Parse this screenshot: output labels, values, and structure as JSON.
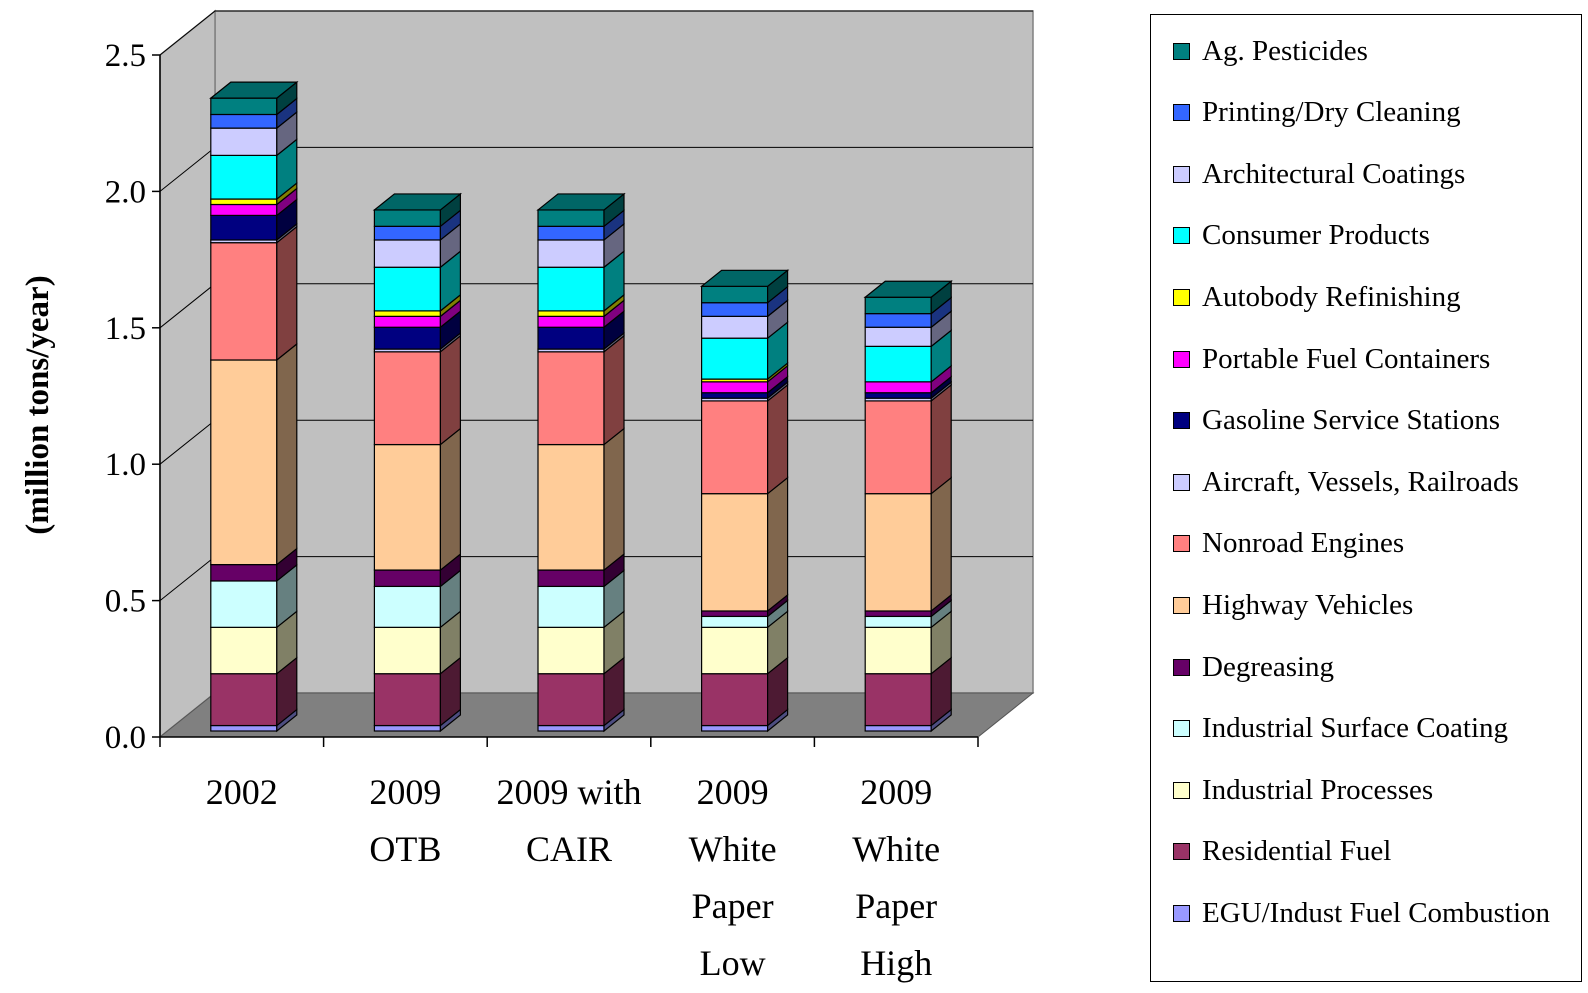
{
  "chart_data": {
    "type": "bar",
    "stacked": true,
    "three_d": true,
    "title": "",
    "xlabel": "",
    "ylabel": "(million tons/year)",
    "ylim": [
      0,
      2.5
    ],
    "yticks": [
      "0.0",
      "0.5",
      "1.0",
      "1.5",
      "2.0",
      "2.5"
    ],
    "grid": true,
    "legend_position": "right",
    "categories": [
      [
        "2002"
      ],
      [
        "2009",
        "OTB"
      ],
      [
        "2009 with",
        "CAIR"
      ],
      [
        "2009",
        "White",
        "Paper",
        "Low"
      ],
      [
        "2009",
        "White",
        "Paper",
        "High"
      ]
    ],
    "series": [
      {
        "name": "EGU/Indust Fuel Combustion",
        "color": "#9999FF",
        "values": [
          0.02,
          0.02,
          0.02,
          0.02,
          0.02
        ]
      },
      {
        "name": "Residential Fuel",
        "color": "#993366",
        "values": [
          0.19,
          0.19,
          0.19,
          0.19,
          0.19
        ]
      },
      {
        "name": "Industrial Processes",
        "color": "#FFFFCC",
        "values": [
          0.17,
          0.17,
          0.17,
          0.17,
          0.17
        ]
      },
      {
        "name": "Industrial Surface Coating",
        "color": "#CCFFFF",
        "values": [
          0.17,
          0.15,
          0.15,
          0.04,
          0.04
        ]
      },
      {
        "name": "Degreasing",
        "color": "#660066",
        "values": [
          0.06,
          0.06,
          0.06,
          0.02,
          0.02
        ]
      },
      {
        "name": "Highway Vehicles",
        "color": "#FFCC99",
        "values": [
          0.75,
          0.46,
          0.46,
          0.43,
          0.43
        ]
      },
      {
        "name": "Nonroad Engines",
        "color": "#FF8080",
        "values": [
          0.43,
          0.34,
          0.34,
          0.34,
          0.34
        ]
      },
      {
        "name": "Aircraft, Vessels, Railroads",
        "color": "#CCCCFF",
        "values": [
          0.01,
          0.01,
          0.01,
          0.01,
          0.01
        ]
      },
      {
        "name": "Gasoline Service Stations",
        "color": "#000080",
        "values": [
          0.09,
          0.08,
          0.08,
          0.02,
          0.02
        ]
      },
      {
        "name": "Portable Fuel Containers",
        "color": "#FF00FF",
        "values": [
          0.04,
          0.04,
          0.04,
          0.04,
          0.04
        ]
      },
      {
        "name": "Autobody Refinishing",
        "color": "#FFFF00",
        "values": [
          0.02,
          0.02,
          0.02,
          0.01,
          0.0
        ]
      },
      {
        "name": "Consumer Products",
        "color": "#00FFFF",
        "values": [
          0.16,
          0.16,
          0.16,
          0.15,
          0.13
        ]
      },
      {
        "name": "Architectural Coatings",
        "color": "#CCCCFF",
        "values": [
          0.1,
          0.1,
          0.1,
          0.08,
          0.07
        ]
      },
      {
        "name": "Printing/Dry Cleaning",
        "color": "#3366FF",
        "values": [
          0.05,
          0.05,
          0.05,
          0.05,
          0.05
        ]
      },
      {
        "name": "Ag. Pesticides",
        "color": "#008080",
        "values": [
          0.06,
          0.06,
          0.06,
          0.06,
          0.06
        ]
      }
    ]
  }
}
